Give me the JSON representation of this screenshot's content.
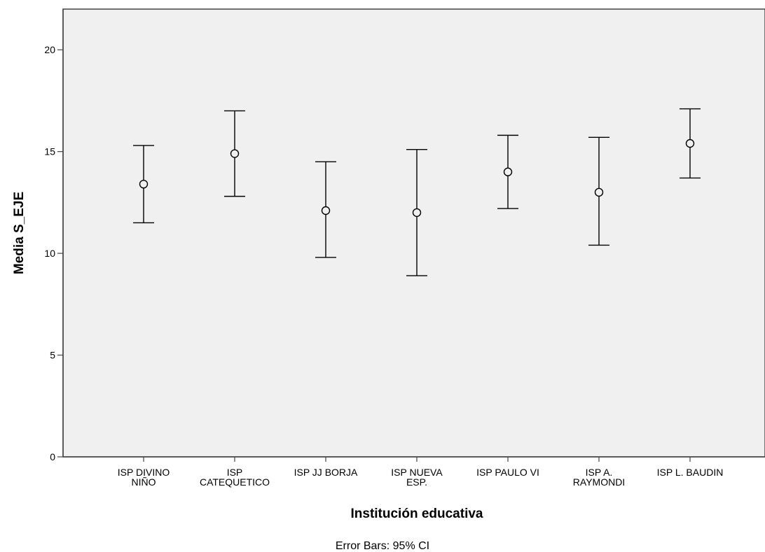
{
  "chart_data": {
    "type": "errorbar",
    "xlabel": "Institución educativa",
    "ylabel": "Media S_EJE",
    "footnote": "Error Bars: 95% CI",
    "ylim": [
      0,
      22
    ],
    "yticks": [
      0,
      5,
      10,
      15,
      20
    ],
    "grid": false,
    "colors": {
      "plot_background": "#f0f0f0",
      "marks": "#000000"
    },
    "categories": [
      [
        "ISP DIVINO",
        "NIÑO"
      ],
      [
        "ISP",
        "CATEQUETICO"
      ],
      [
        "ISP JJ BORJA"
      ],
      [
        "ISP NUEVA",
        "ESP."
      ],
      [
        "ISP PAULO VI"
      ],
      [
        "ISP A.",
        "RAYMONDI"
      ],
      [
        "ISP L. BAUDIN"
      ]
    ],
    "points": [
      {
        "mean": 13.4,
        "lower": 11.5,
        "upper": 15.3
      },
      {
        "mean": 14.9,
        "lower": 12.8,
        "upper": 17.0
      },
      {
        "mean": 12.1,
        "lower": 9.8,
        "upper": 14.5
      },
      {
        "mean": 12.0,
        "lower": 8.9,
        "upper": 15.1
      },
      {
        "mean": 14.0,
        "lower": 12.2,
        "upper": 15.8
      },
      {
        "mean": 13.0,
        "lower": 10.4,
        "upper": 15.7
      },
      {
        "mean": 15.4,
        "lower": 13.7,
        "upper": 17.1
      }
    ]
  }
}
